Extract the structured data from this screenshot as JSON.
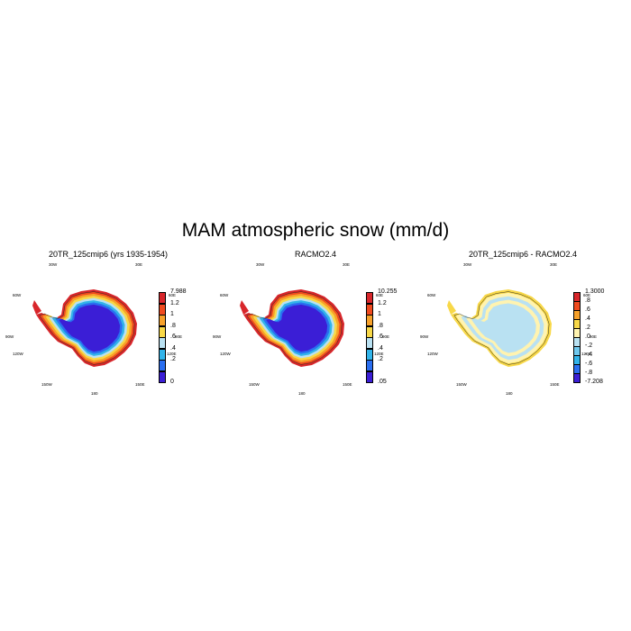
{
  "title": "MAM atmospheric snow (mm/d)",
  "coord_labels": {
    "top_left": "30W",
    "top_right": "30E",
    "upper_left": "60W",
    "upper_right": "60E",
    "mid_left": "90W",
    "mid_right": "90E",
    "lower_left": "120W",
    "lower_right": "120E",
    "bottom_left": "150W",
    "bottom_right": "150E",
    "bottom_center": "180"
  },
  "panels": [
    {
      "title": "20TR_125cmip6 (yrs 1935-1954)",
      "colorbar": {
        "labels": [
          "7.988",
          "1.2",
          "1",
          ".8",
          ".6",
          ".4",
          ".2",
          "0"
        ],
        "colors": [
          "#d8262b",
          "#f04a1e",
          "#f7a12a",
          "#f8d848",
          "#b9e1f2",
          "#32b4ea",
          "#2a6ef0",
          "#3b1ed6"
        ]
      },
      "map": {
        "interior_color": "#3b1ed6",
        "ring_colors": [
          "#d8262b",
          "#f04a1e",
          "#f7a12a",
          "#f8d848",
          "#b9e1f2",
          "#32b4ea",
          "#2a6ef0"
        ]
      }
    },
    {
      "title": "RACMO2.4",
      "colorbar": {
        "labels": [
          "10.255",
          "1.2",
          "1",
          ".8",
          ".6",
          ".4",
          ".2",
          ".05"
        ],
        "colors": [
          "#d8262b",
          "#f04a1e",
          "#f7a12a",
          "#f8d848",
          "#b9e1f2",
          "#32b4ea",
          "#2a6ef0",
          "#3b1ed6"
        ]
      },
      "map": {
        "interior_color": "#3b1ed6",
        "ring_colors": [
          "#d8262b",
          "#f04a1e",
          "#f7a12a",
          "#f8d848",
          "#b9e1f2",
          "#32b4ea",
          "#2a6ef0"
        ]
      }
    },
    {
      "title": "20TR_125cmip6 - RACMO2.4",
      "colorbar": {
        "labels": [
          "1.3000",
          ".8",
          ".6",
          ".4",
          ".2",
          ".0",
          "-.2",
          "-.4",
          "-.6",
          "-.8",
          "-7.208"
        ],
        "colors": [
          "#d8262b",
          "#f04a1e",
          "#f7a12a",
          "#f8d848",
          "#fff3b0",
          "#b9e1f2",
          "#6fc8ee",
          "#32b4ea",
          "#2a6ef0",
          "#3b1ed6"
        ]
      },
      "map": {
        "interior_color": "#b9e1f2",
        "ring_colors": [
          "#f8d848",
          "#fff3b0",
          "#b9e1f2",
          "#fff3b0"
        ]
      }
    }
  ]
}
